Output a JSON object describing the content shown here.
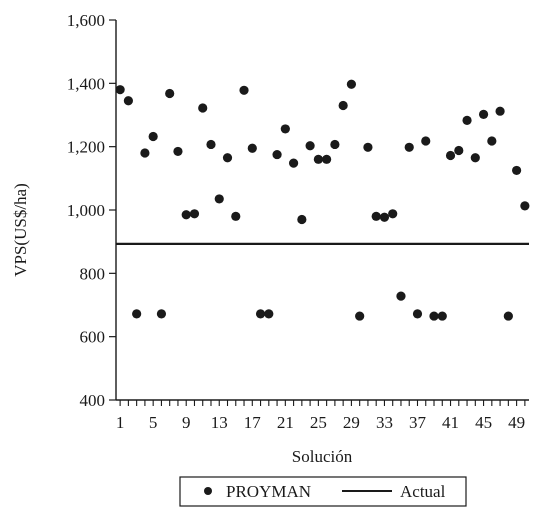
{
  "chart_data": {
    "type": "scatter",
    "xlabel": "Solución",
    "ylabel": "VPS(US$/ha)",
    "xlim": [
      0.5,
      50.5
    ],
    "ylim": [
      400,
      1600
    ],
    "yticks": [
      400,
      600,
      800,
      1000,
      1200,
      1400,
      1600
    ],
    "ytick_labels": [
      "400",
      "600",
      "800",
      "1,000",
      "1,200",
      "1,400",
      "1,600"
    ],
    "xticks": [
      1,
      5,
      9,
      13,
      17,
      21,
      25,
      29,
      33,
      37,
      41,
      45,
      49
    ],
    "xtick_labels": [
      "1",
      "5",
      "9",
      "13",
      "17",
      "21",
      "25",
      "29",
      "33",
      "37",
      "41",
      "45",
      "49"
    ],
    "grid": false,
    "legend_position": "bottom",
    "series": [
      {
        "name": "PROYMAN",
        "kind": "points",
        "color": "#1a1a1a",
        "x": [
          1,
          2,
          3,
          4,
          5,
          6,
          7,
          8,
          9,
          10,
          11,
          12,
          13,
          14,
          15,
          16,
          17,
          18,
          19,
          20,
          21,
          22,
          23,
          24,
          25,
          26,
          27,
          28,
          29,
          30,
          31,
          32,
          33,
          34,
          35,
          36,
          37,
          38,
          39,
          40,
          41,
          42,
          43,
          44,
          45,
          46,
          47,
          48,
          49,
          50
        ],
        "y": [
          1380,
          1345,
          672,
          1180,
          1232,
          672,
          1368,
          1185,
          985,
          988,
          1322,
          1207,
          1035,
          1165,
          980,
          1378,
          1195,
          672,
          672,
          1175,
          1256,
          1148,
          970,
          1203,
          1160,
          1160,
          1207,
          1330,
          1397,
          665,
          1198,
          980,
          977,
          988,
          728,
          1198,
          672,
          1218,
          665,
          665,
          1172,
          1188,
          1283,
          1165,
          1302,
          1218,
          1312,
          665,
          1125,
          1013
        ]
      },
      {
        "name": "Actual",
        "kind": "line",
        "color": "#1a1a1a",
        "y": 893
      }
    ]
  }
}
